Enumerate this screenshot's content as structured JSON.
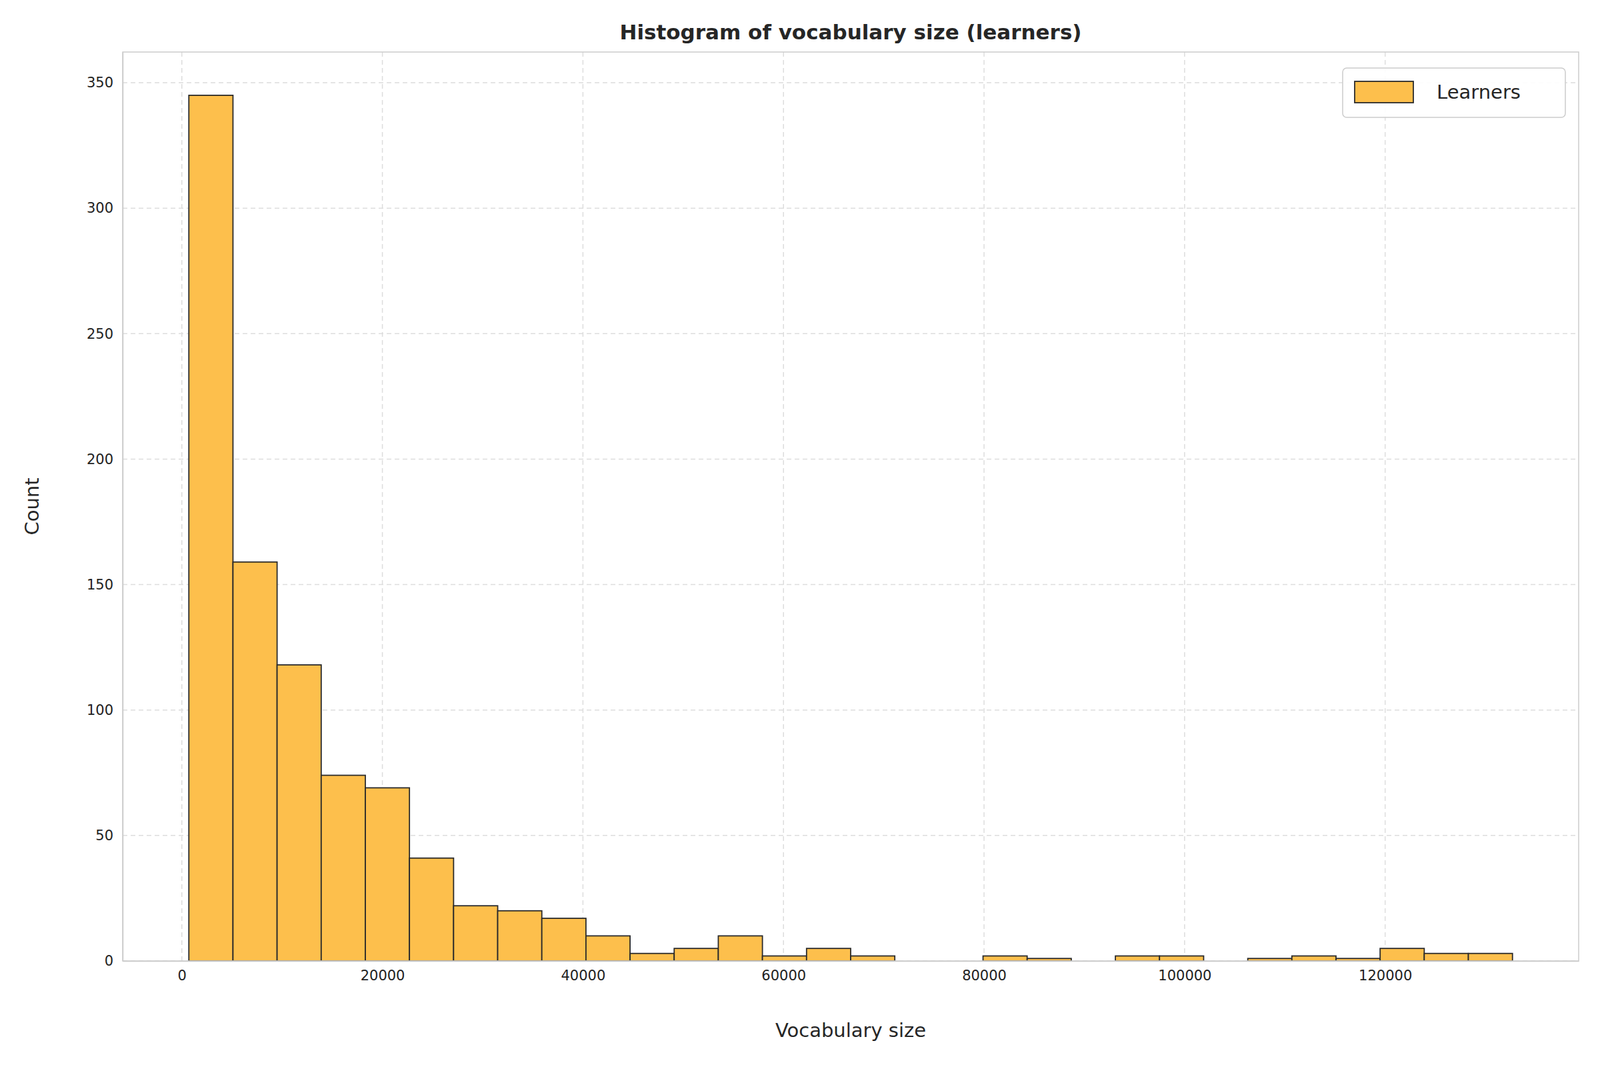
{
  "chart_data": {
    "type": "histogram",
    "title": "Histogram of vocabulary size (learners)",
    "x_label": "Vocabulary size",
    "y_label": "Count",
    "bins": [
      700,
      5100,
      9500,
      13900,
      18300,
      22700,
      27100,
      31500,
      35900,
      40300,
      44700,
      49100,
      53500,
      57900,
      62300,
      66700,
      71100,
      75500,
      79900,
      84300,
      88700,
      93100,
      97500,
      101900,
      106300,
      110700,
      115100,
      119500,
      123900,
      128300,
      132700
    ],
    "series": [
      {
        "name": "Learners",
        "color": "#fdbf4c",
        "values": [
          345,
          159,
          118,
          74,
          69,
          41,
          22,
          20,
          17,
          10,
          3,
          5,
          10,
          2,
          5,
          2,
          0,
          0,
          2,
          1,
          0,
          2,
          2,
          0,
          1,
          2,
          1,
          5,
          3,
          3
        ]
      }
    ],
    "xlim": [
      -5900,
      139300
    ],
    "ylim": [
      0,
      362.25
    ],
    "xticks": [
      0,
      20000,
      40000,
      60000,
      80000,
      100000,
      120000
    ],
    "yticks": [
      0,
      50,
      100,
      150,
      200,
      250,
      300,
      350
    ],
    "grid": true,
    "legend": "upper right"
  }
}
